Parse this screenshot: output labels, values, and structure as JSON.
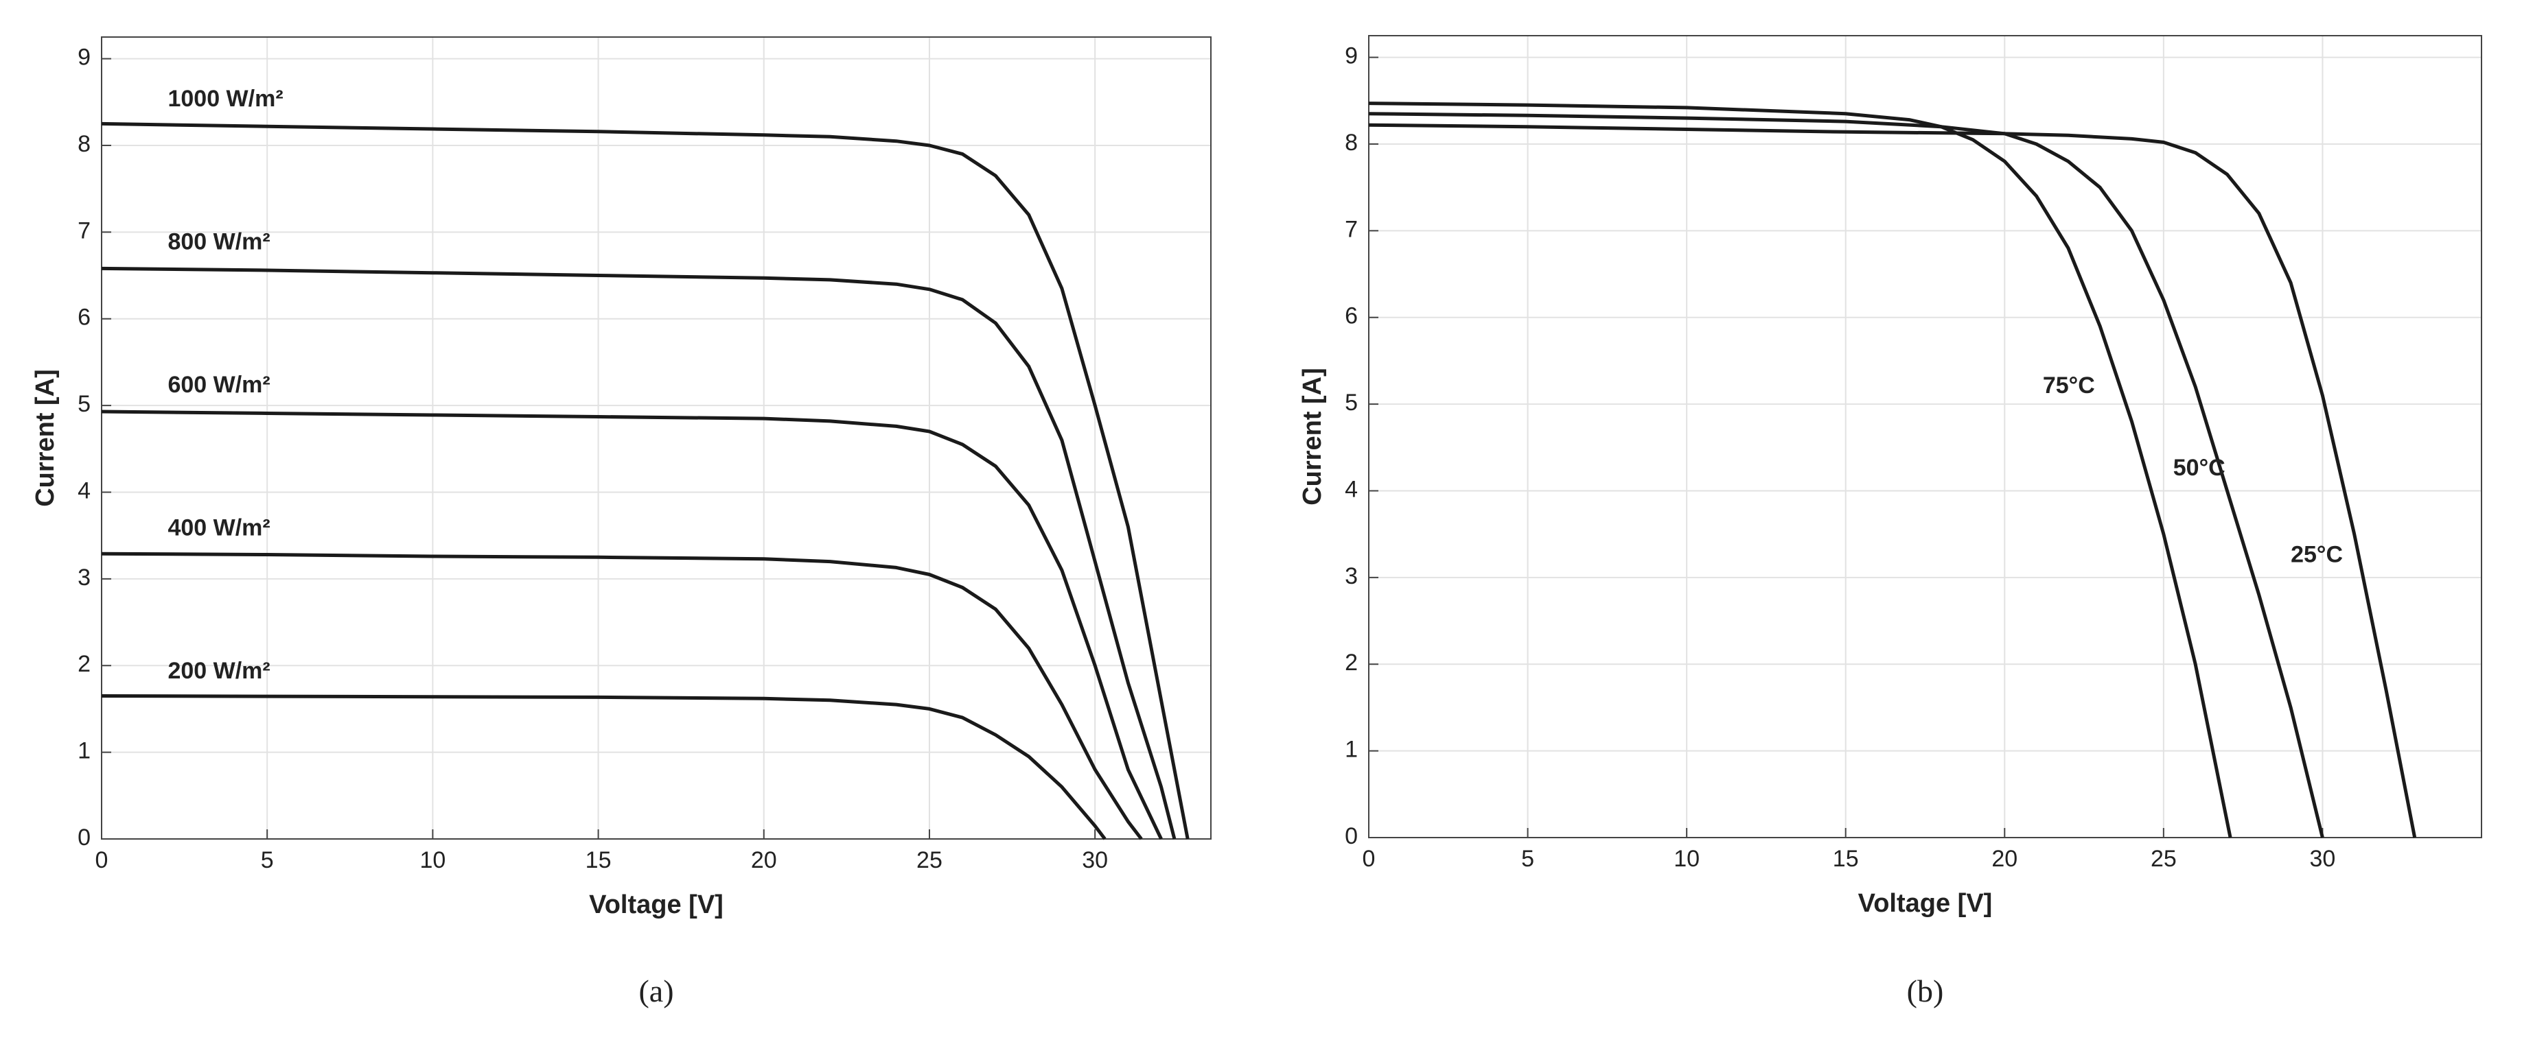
{
  "chart_data": [
    {
      "type": "line",
      "caption": "(a)",
      "x_label": "Voltage [V]",
      "y_label": "Current [A]",
      "xlim": [
        0,
        33.5
      ],
      "ylim": [
        0,
        9.25
      ],
      "xticks": [
        0,
        5,
        10,
        15,
        20,
        25,
        30
      ],
      "yticks": [
        0,
        1,
        2,
        3,
        4,
        5,
        6,
        7,
        8,
        9
      ],
      "grid": true,
      "series": [
        {
          "name": "1000 W/m²",
          "color": "#1a1a1a",
          "x": [
            0,
            5,
            10,
            15,
            20,
            22,
            24,
            25,
            26,
            27,
            28,
            29,
            30,
            31,
            32,
            32.8
          ],
          "values": [
            8.25,
            8.22,
            8.19,
            8.16,
            8.12,
            8.1,
            8.05,
            8.0,
            7.9,
            7.65,
            7.2,
            6.35,
            5.0,
            3.6,
            1.6,
            0
          ]
        },
        {
          "name": "800 W/m²",
          "color": "#1a1a1a",
          "x": [
            0,
            5,
            10,
            15,
            20,
            22,
            24,
            25,
            26,
            27,
            28,
            29,
            30,
            31,
            32,
            32.4
          ],
          "values": [
            6.58,
            6.56,
            6.53,
            6.5,
            6.47,
            6.45,
            6.4,
            6.34,
            6.22,
            5.95,
            5.45,
            4.6,
            3.2,
            1.8,
            0.6,
            0
          ]
        },
        {
          "name": "600 W/m²",
          "color": "#1a1a1a",
          "x": [
            0,
            5,
            10,
            15,
            20,
            22,
            24,
            25,
            26,
            27,
            28,
            29,
            30,
            31,
            32
          ],
          "values": [
            4.93,
            4.91,
            4.89,
            4.87,
            4.85,
            4.82,
            4.76,
            4.7,
            4.55,
            4.3,
            3.85,
            3.1,
            2.0,
            0.8,
            0
          ]
        },
        {
          "name": "400 W/m²",
          "color": "#1a1a1a",
          "x": [
            0,
            5,
            10,
            15,
            20,
            22,
            24,
            25,
            26,
            27,
            28,
            29,
            30,
            31,
            31.4
          ],
          "values": [
            3.29,
            3.28,
            3.26,
            3.25,
            3.23,
            3.2,
            3.13,
            3.05,
            2.9,
            2.65,
            2.2,
            1.55,
            0.8,
            0.2,
            0
          ]
        },
        {
          "name": "200 W/m²",
          "color": "#1a1a1a",
          "x": [
            0,
            5,
            10,
            15,
            20,
            22,
            24,
            25,
            26,
            27,
            28,
            29,
            30,
            30.3
          ],
          "values": [
            1.65,
            1.645,
            1.64,
            1.635,
            1.62,
            1.6,
            1.55,
            1.5,
            1.4,
            1.2,
            0.95,
            0.6,
            0.15,
            0
          ]
        }
      ]
    },
    {
      "type": "line",
      "caption": "(b)",
      "x_label": "Voltage [V]",
      "y_label": "Current [A]",
      "xlim": [
        0,
        35
      ],
      "ylim": [
        0,
        9.25
      ],
      "xticks": [
        0,
        5,
        10,
        15,
        20,
        25,
        30
      ],
      "yticks": [
        0,
        1,
        2,
        3,
        4,
        5,
        6,
        7,
        8,
        9
      ],
      "grid": true,
      "series": [
        {
          "name": "75°C",
          "color": "#1a1a1a",
          "x": [
            0,
            5,
            10,
            15,
            17,
            18,
            19,
            20,
            21,
            22,
            23,
            24,
            25,
            26,
            27.1
          ],
          "values": [
            8.47,
            8.45,
            8.42,
            8.35,
            8.28,
            8.2,
            8.05,
            7.8,
            7.4,
            6.8,
            5.9,
            4.8,
            3.5,
            2.0,
            0
          ]
        },
        {
          "name": "50°C",
          "color": "#1a1a1a",
          "x": [
            0,
            5,
            10,
            15,
            18,
            20,
            21,
            22,
            23,
            24,
            25,
            26,
            27,
            28,
            29,
            30
          ],
          "values": [
            8.35,
            8.33,
            8.3,
            8.26,
            8.2,
            8.12,
            8.0,
            7.8,
            7.5,
            7.0,
            6.2,
            5.2,
            4.0,
            2.8,
            1.5,
            0
          ]
        },
        {
          "name": "25°C",
          "color": "#1a1a1a",
          "x": [
            0,
            5,
            10,
            15,
            20,
            22,
            24,
            25,
            26,
            27,
            28,
            29,
            30,
            31,
            32,
            32.9
          ],
          "values": [
            8.22,
            8.2,
            8.17,
            8.14,
            8.12,
            8.1,
            8.06,
            8.02,
            7.9,
            7.65,
            7.2,
            6.4,
            5.1,
            3.5,
            1.7,
            0
          ]
        }
      ]
    }
  ]
}
